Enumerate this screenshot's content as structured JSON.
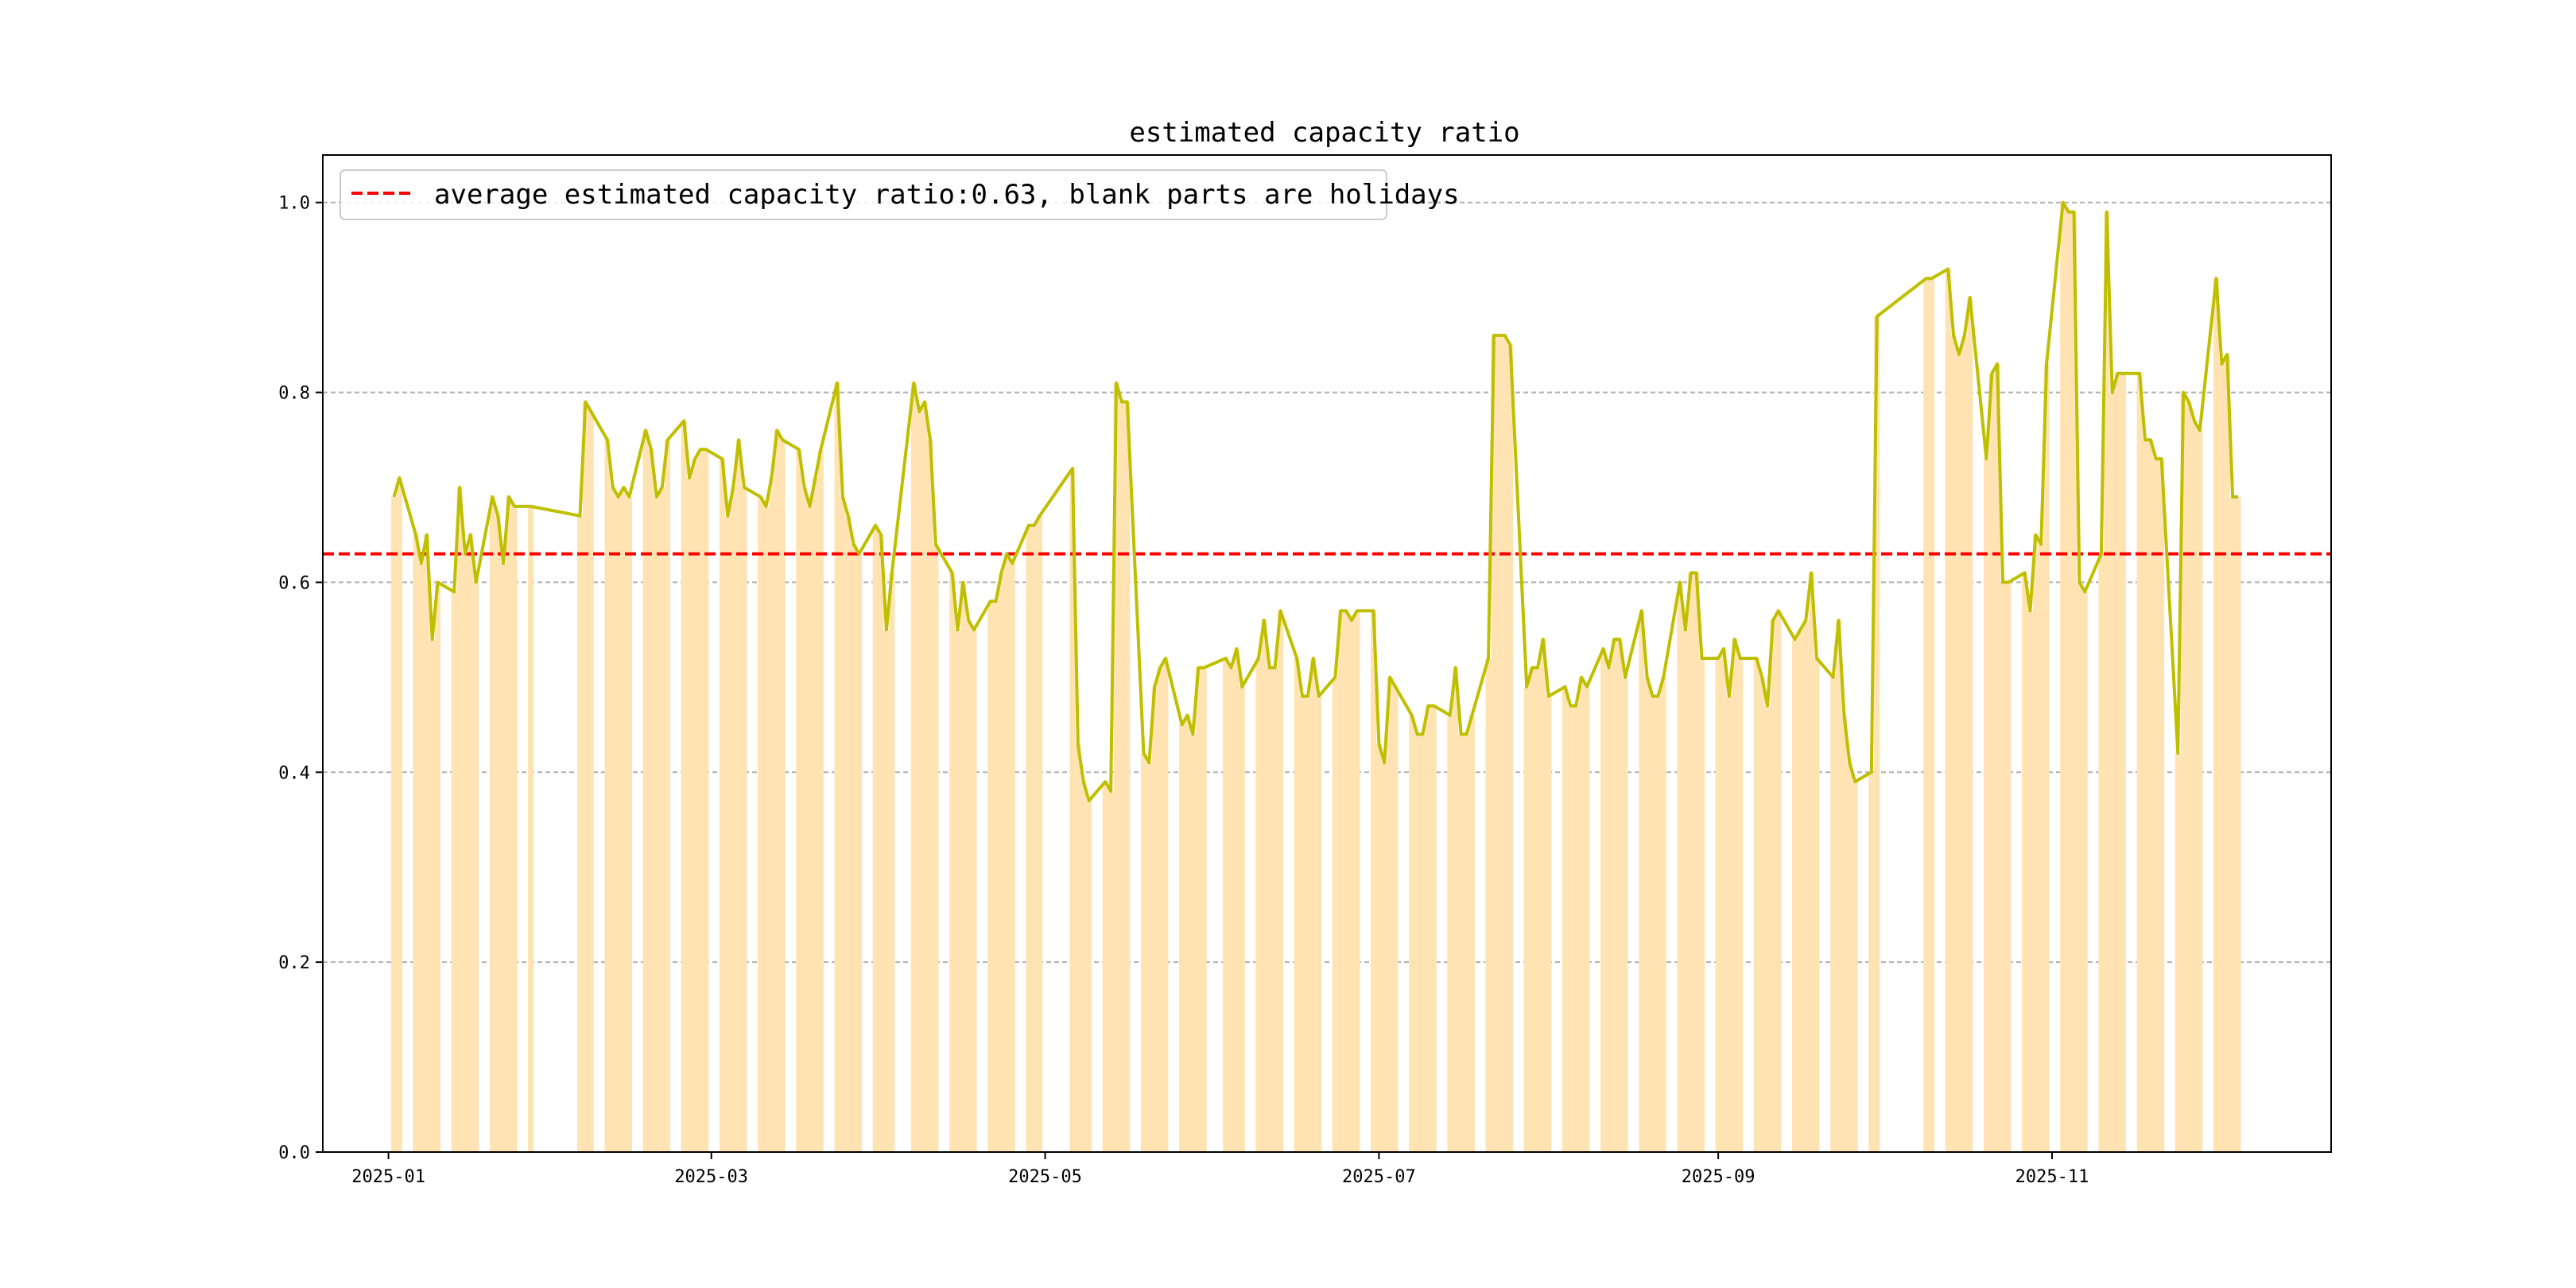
{
  "chart_data": {
    "type": "bar",
    "title": "estimated capacity ratio",
    "xlabel": "",
    "ylabel": "",
    "ylim": [
      0,
      1.05
    ],
    "xlim": [
      "2024-12-20",
      "2025-12-22"
    ],
    "y_ticks": [
      0.0,
      0.2,
      0.4,
      0.6,
      0.8,
      1.0
    ],
    "y_tick_labels": [
      "0.0",
      "0.2",
      "0.4",
      "0.6",
      "0.8",
      "1.0"
    ],
    "x_ticks": [
      "2025-01-01",
      "2025-03-01",
      "2025-05-01",
      "2025-07-01",
      "2025-09-01",
      "2025-11-01"
    ],
    "x_tick_labels": [
      "2025-01",
      "2025-03",
      "2025-05",
      "2025-07",
      "2025-09",
      "2025-11"
    ],
    "grid": "y-dashed",
    "legend": {
      "position": "top-left",
      "entries": [
        {
          "label": "average estimated capacity ratio:0.63, blank parts are holidays",
          "style": "dashed",
          "color": "#ff0000"
        }
      ]
    },
    "average_line": 0.63,
    "colors": {
      "bars": "#ffe3b3",
      "line": "#bfbf00",
      "average": "#ff0000",
      "grid": "#b0b0b0"
    },
    "series": [
      {
        "values": [
          [
            "2025-01-02",
            0.69
          ],
          [
            "2025-01-03",
            0.71
          ],
          [
            "2025-01-06",
            0.65
          ],
          [
            "2025-01-07",
            0.62
          ],
          [
            "2025-01-08",
            0.65
          ],
          [
            "2025-01-09",
            0.54
          ],
          [
            "2025-01-10",
            0.6
          ],
          [
            "2025-01-13",
            0.59
          ],
          [
            "2025-01-14",
            0.7
          ],
          [
            "2025-01-15",
            0.63
          ],
          [
            "2025-01-16",
            0.65
          ],
          [
            "2025-01-17",
            0.6
          ],
          [
            "2025-01-20",
            0.69
          ],
          [
            "2025-01-21",
            0.67
          ],
          [
            "2025-01-22",
            0.62
          ],
          [
            "2025-01-23",
            0.69
          ],
          [
            "2025-01-24",
            0.68
          ],
          [
            "2025-01-27",
            0.68
          ],
          [
            "2025-02-05",
            0.67
          ],
          [
            "2025-02-06",
            0.79
          ],
          [
            "2025-02-07",
            0.78
          ],
          [
            "2025-02-10",
            0.75
          ],
          [
            "2025-02-11",
            0.7
          ],
          [
            "2025-02-12",
            0.69
          ],
          [
            "2025-02-13",
            0.7
          ],
          [
            "2025-02-14",
            0.69
          ],
          [
            "2025-02-17",
            0.76
          ],
          [
            "2025-02-18",
            0.74
          ],
          [
            "2025-02-19",
            0.69
          ],
          [
            "2025-02-20",
            0.7
          ],
          [
            "2025-02-21",
            0.75
          ],
          [
            "2025-02-24",
            0.77
          ],
          [
            "2025-02-25",
            0.71
          ],
          [
            "2025-02-26",
            0.73
          ],
          [
            "2025-02-27",
            0.74
          ],
          [
            "2025-02-28",
            0.74
          ],
          [
            "2025-03-03",
            0.73
          ],
          [
            "2025-03-04",
            0.67
          ],
          [
            "2025-03-05",
            0.7
          ],
          [
            "2025-03-06",
            0.75
          ],
          [
            "2025-03-07",
            0.7
          ],
          [
            "2025-03-10",
            0.69
          ],
          [
            "2025-03-11",
            0.68
          ],
          [
            "2025-03-12",
            0.71
          ],
          [
            "2025-03-13",
            0.76
          ],
          [
            "2025-03-14",
            0.75
          ],
          [
            "2025-03-17",
            0.74
          ],
          [
            "2025-03-18",
            0.7
          ],
          [
            "2025-03-19",
            0.68
          ],
          [
            "2025-03-20",
            0.71
          ],
          [
            "2025-03-21",
            0.74
          ],
          [
            "2025-03-24",
            0.81
          ],
          [
            "2025-03-25",
            0.69
          ],
          [
            "2025-03-26",
            0.67
          ],
          [
            "2025-03-27",
            0.64
          ],
          [
            "2025-03-28",
            0.63
          ],
          [
            "2025-03-31",
            0.66
          ],
          [
            "2025-04-01",
            0.65
          ],
          [
            "2025-04-02",
            0.55
          ],
          [
            "2025-04-03",
            0.61
          ],
          [
            "2025-04-07",
            0.81
          ],
          [
            "2025-04-08",
            0.78
          ],
          [
            "2025-04-09",
            0.79
          ],
          [
            "2025-04-10",
            0.75
          ],
          [
            "2025-04-11",
            0.64
          ],
          [
            "2025-04-14",
            0.61
          ],
          [
            "2025-04-15",
            0.55
          ],
          [
            "2025-04-16",
            0.6
          ],
          [
            "2025-04-17",
            0.56
          ],
          [
            "2025-04-18",
            0.55
          ],
          [
            "2025-04-21",
            0.58
          ],
          [
            "2025-04-22",
            0.58
          ],
          [
            "2025-04-23",
            0.61
          ],
          [
            "2025-04-24",
            0.63
          ],
          [
            "2025-04-25",
            0.62
          ],
          [
            "2025-04-28",
            0.66
          ],
          [
            "2025-04-29",
            0.66
          ],
          [
            "2025-04-30",
            0.67
          ],
          [
            "2025-05-06",
            0.72
          ],
          [
            "2025-05-07",
            0.43
          ],
          [
            "2025-05-08",
            0.39
          ],
          [
            "2025-05-09",
            0.37
          ],
          [
            "2025-05-12",
            0.39
          ],
          [
            "2025-05-13",
            0.38
          ],
          [
            "2025-05-14",
            0.81
          ],
          [
            "2025-05-15",
            0.79
          ],
          [
            "2025-05-16",
            0.79
          ],
          [
            "2025-05-19",
            0.42
          ],
          [
            "2025-05-20",
            0.41
          ],
          [
            "2025-05-21",
            0.49
          ],
          [
            "2025-05-22",
            0.51
          ],
          [
            "2025-05-23",
            0.52
          ],
          [
            "2025-05-26",
            0.45
          ],
          [
            "2025-05-27",
            0.46
          ],
          [
            "2025-05-28",
            0.44
          ],
          [
            "2025-05-29",
            0.51
          ],
          [
            "2025-05-30",
            0.51
          ],
          [
            "2025-06-03",
            0.52
          ],
          [
            "2025-06-04",
            0.51
          ],
          [
            "2025-06-05",
            0.53
          ],
          [
            "2025-06-06",
            0.49
          ],
          [
            "2025-06-09",
            0.52
          ],
          [
            "2025-06-10",
            0.56
          ],
          [
            "2025-06-11",
            0.51
          ],
          [
            "2025-06-12",
            0.51
          ],
          [
            "2025-06-13",
            0.57
          ],
          [
            "2025-06-16",
            0.52
          ],
          [
            "2025-06-17",
            0.48
          ],
          [
            "2025-06-18",
            0.48
          ],
          [
            "2025-06-19",
            0.52
          ],
          [
            "2025-06-20",
            0.48
          ],
          [
            "2025-06-23",
            0.5
          ],
          [
            "2025-06-24",
            0.57
          ],
          [
            "2025-06-25",
            0.57
          ],
          [
            "2025-06-26",
            0.56
          ],
          [
            "2025-06-27",
            0.57
          ],
          [
            "2025-06-30",
            0.57
          ],
          [
            "2025-07-01",
            0.43
          ],
          [
            "2025-07-02",
            0.41
          ],
          [
            "2025-07-03",
            0.5
          ],
          [
            "2025-07-04",
            0.49
          ],
          [
            "2025-07-07",
            0.46
          ],
          [
            "2025-07-08",
            0.44
          ],
          [
            "2025-07-09",
            0.44
          ],
          [
            "2025-07-10",
            0.47
          ],
          [
            "2025-07-11",
            0.47
          ],
          [
            "2025-07-14",
            0.46
          ],
          [
            "2025-07-15",
            0.51
          ],
          [
            "2025-07-16",
            0.44
          ],
          [
            "2025-07-17",
            0.44
          ],
          [
            "2025-07-18",
            0.46
          ],
          [
            "2025-07-21",
            0.52
          ],
          [
            "2025-07-22",
            0.86
          ],
          [
            "2025-07-23",
            0.86
          ],
          [
            "2025-07-24",
            0.86
          ],
          [
            "2025-07-25",
            0.85
          ],
          [
            "2025-07-28",
            0.49
          ],
          [
            "2025-07-29",
            0.51
          ],
          [
            "2025-07-30",
            0.51
          ],
          [
            "2025-07-31",
            0.54
          ],
          [
            "2025-08-01",
            0.48
          ],
          [
            "2025-08-04",
            0.49
          ],
          [
            "2025-08-05",
            0.47
          ],
          [
            "2025-08-06",
            0.47
          ],
          [
            "2025-08-07",
            0.5
          ],
          [
            "2025-08-08",
            0.49
          ],
          [
            "2025-08-11",
            0.53
          ],
          [
            "2025-08-12",
            0.51
          ],
          [
            "2025-08-13",
            0.54
          ],
          [
            "2025-08-14",
            0.54
          ],
          [
            "2025-08-15",
            0.5
          ],
          [
            "2025-08-18",
            0.57
          ],
          [
            "2025-08-19",
            0.5
          ],
          [
            "2025-08-20",
            0.48
          ],
          [
            "2025-08-21",
            0.48
          ],
          [
            "2025-08-22",
            0.5
          ],
          [
            "2025-08-25",
            0.6
          ],
          [
            "2025-08-26",
            0.55
          ],
          [
            "2025-08-27",
            0.61
          ],
          [
            "2025-08-28",
            0.61
          ],
          [
            "2025-08-29",
            0.52
          ],
          [
            "2025-09-01",
            0.52
          ],
          [
            "2025-09-02",
            0.53
          ],
          [
            "2025-09-03",
            0.48
          ],
          [
            "2025-09-04",
            0.54
          ],
          [
            "2025-09-05",
            0.52
          ],
          [
            "2025-09-08",
            0.52
          ],
          [
            "2025-09-09",
            0.5
          ],
          [
            "2025-09-10",
            0.47
          ],
          [
            "2025-09-11",
            0.56
          ],
          [
            "2025-09-12",
            0.57
          ],
          [
            "2025-09-15",
            0.54
          ],
          [
            "2025-09-16",
            0.55
          ],
          [
            "2025-09-17",
            0.56
          ],
          [
            "2025-09-18",
            0.61
          ],
          [
            "2025-09-19",
            0.52
          ],
          [
            "2025-09-22",
            0.5
          ],
          [
            "2025-09-23",
            0.56
          ],
          [
            "2025-09-24",
            0.46
          ],
          [
            "2025-09-25",
            0.41
          ],
          [
            "2025-09-26",
            0.39
          ],
          [
            "2025-09-29",
            0.4
          ],
          [
            "2025-09-30",
            0.88
          ],
          [
            "2025-10-09",
            0.92
          ],
          [
            "2025-10-10",
            0.92
          ],
          [
            "2025-10-13",
            0.93
          ],
          [
            "2025-10-14",
            0.86
          ],
          [
            "2025-10-15",
            0.84
          ],
          [
            "2025-10-16",
            0.86
          ],
          [
            "2025-10-17",
            0.9
          ],
          [
            "2025-10-20",
            0.73
          ],
          [
            "2025-10-21",
            0.82
          ],
          [
            "2025-10-22",
            0.83
          ],
          [
            "2025-10-23",
            0.6
          ],
          [
            "2025-10-24",
            0.6
          ],
          [
            "2025-10-27",
            0.61
          ],
          [
            "2025-10-28",
            0.57
          ],
          [
            "2025-10-29",
            0.65
          ],
          [
            "2025-10-30",
            0.64
          ],
          [
            "2025-10-31",
            0.83
          ],
          [
            "2025-11-03",
            1.0
          ],
          [
            "2025-11-04",
            0.99
          ],
          [
            "2025-11-05",
            0.99
          ],
          [
            "2025-11-06",
            0.6
          ],
          [
            "2025-11-07",
            0.59
          ],
          [
            "2025-11-10",
            0.63
          ],
          [
            "2025-11-11",
            0.99
          ],
          [
            "2025-11-12",
            0.8
          ],
          [
            "2025-11-13",
            0.82
          ],
          [
            "2025-11-14",
            0.82
          ],
          [
            "2025-11-17",
            0.82
          ],
          [
            "2025-11-18",
            0.75
          ],
          [
            "2025-11-19",
            0.75
          ],
          [
            "2025-11-20",
            0.73
          ],
          [
            "2025-11-21",
            0.73
          ],
          [
            "2025-11-24",
            0.42
          ],
          [
            "2025-11-25",
            0.8
          ],
          [
            "2025-11-26",
            0.79
          ],
          [
            "2025-11-27",
            0.77
          ],
          [
            "2025-11-28",
            0.76
          ],
          [
            "2025-12-01",
            0.92
          ],
          [
            "2025-12-02",
            0.83
          ],
          [
            "2025-12-03",
            0.84
          ],
          [
            "2025-12-04",
            0.69
          ],
          [
            "2025-12-05",
            0.69
          ]
        ]
      }
    ]
  }
}
